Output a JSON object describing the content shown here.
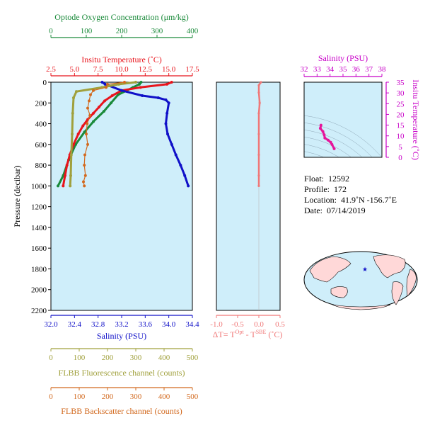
{
  "colors": {
    "oxygen": "#1a8a3a",
    "temperature": "#e8141c",
    "salinity": "#1010c8",
    "fluorescence": "#a0a03c",
    "backscatter": "#d2691e",
    "delta": "#f07878",
    "ts_axis": "#c800c8",
    "ts_line": "#e6149a",
    "panel_bg": "#cfeefa",
    "map_ocean": "#cfeefa",
    "map_land": "#ffd8d8",
    "map_marker": "#1010c8"
  },
  "main_panel": {
    "ylabel": "Pressure (decibar)",
    "yticks": [
      "0",
      "200",
      "400",
      "600",
      "800",
      "1000",
      "1200",
      "1400",
      "1600",
      "1800",
      "2000",
      "2200"
    ],
    "ylim": [
      0,
      2200
    ],
    "axes": {
      "oxygen": {
        "label": "Optode Oxygen Concentration (μm/kg)",
        "ticks": [
          "0",
          "100",
          "200",
          "300",
          "400"
        ],
        "lim": [
          0,
          400
        ]
      },
      "temperature": {
        "label": "Insitu Temperature (˚C)",
        "ticks": [
          "2.5",
          "5.0",
          "7.5",
          "10.0",
          "12.5",
          "15.0",
          "17.5"
        ],
        "lim": [
          2.5,
          17.5
        ]
      },
      "salinity": {
        "label": "Salinity (PSU)",
        "ticks": [
          "32.0",
          "32.4",
          "32.8",
          "33.2",
          "33.6",
          "34.0",
          "34.4"
        ],
        "lim": [
          32.0,
          34.4
        ]
      },
      "fluorescence": {
        "label": "FLBB Fluorescence channel (counts)",
        "ticks": [
          "0",
          "100",
          "200",
          "300",
          "400",
          "500"
        ],
        "lim": [
          0,
          500
        ]
      },
      "backscatter": {
        "label": "FLBB Backscatter channel (counts)",
        "ticks": [
          "0",
          "100",
          "200",
          "300",
          "400",
          "500"
        ],
        "lim": [
          0,
          500
        ]
      }
    }
  },
  "delta_panel": {
    "xlabel_main": "ΔT= T",
    "xlabel_sup1": "Opt",
    "xlabel_mid": " - T",
    "xlabel_sup2": "SBE",
    "xlabel_end": " (˚C)",
    "ticks": [
      "-1.0",
      "-0.5",
      "0.0",
      "0.5"
    ],
    "lim": [
      -1.0,
      0.5
    ]
  },
  "ts_panel": {
    "xlabel": "Salinity (PSU)",
    "ylabel": "Insitu Temperature (˚C)",
    "xticks": [
      "32",
      "33",
      "34",
      "35",
      "36",
      "37",
      "38"
    ],
    "yticks": [
      "0",
      "5",
      "10",
      "15",
      "20",
      "25",
      "30",
      "35"
    ],
    "xlim": [
      32,
      38
    ],
    "ylim": [
      0,
      35
    ]
  },
  "float_info": {
    "float_label": "Float:",
    "float_value": "12592",
    "profile_label": "Profile:",
    "profile_value": "172",
    "location_label": "Location:",
    "location_value": "41.9˚N  -156.7˚E",
    "date_label": "Date:",
    "date_value": "07/14/2019"
  },
  "chart_data": [
    {
      "type": "line",
      "title": "Optode Oxygen Concentration (μm/kg)",
      "x": [
        255,
        250,
        232,
        215,
        190,
        170,
        150,
        120,
        95,
        70,
        50,
        35,
        20
      ],
      "y": [
        0,
        20,
        50,
        80,
        120,
        200,
        280,
        380,
        480,
        600,
        750,
        900,
        1000
      ],
      "xlim": [
        0,
        400
      ]
    },
    {
      "type": "line",
      "title": "Insitu Temperature (˚C)",
      "x": [
        15.3,
        14.8,
        12.0,
        10.0,
        9.0,
        8.2,
        7.6,
        7.0,
        6.4,
        5.9,
        5.4,
        4.9,
        4.5,
        4.2,
        4.0,
        3.8
      ],
      "y": [
        0,
        20,
        50,
        80,
        130,
        180,
        240,
        300,
        360,
        420,
        500,
        600,
        700,
        800,
        900,
        1000
      ],
      "xlim": [
        2.5,
        17.5
      ]
    },
    {
      "type": "line",
      "title": "Salinity (PSU)",
      "x": [
        32.87,
        32.92,
        33.2,
        33.55,
        33.82,
        33.95,
        34.0,
        33.97,
        33.95,
        33.98,
        34.05,
        34.12,
        34.2,
        34.27,
        34.33
      ],
      "y": [
        0,
        20,
        80,
        130,
        150,
        170,
        200,
        300,
        400,
        500,
        600,
        700,
        800,
        900,
        1000
      ],
      "xlim": [
        32.0,
        34.4
      ]
    },
    {
      "type": "line",
      "title": "FLBB Fluorescence channel (counts)",
      "x": [
        300,
        240,
        180,
        90,
        80,
        77,
        75,
        72,
        70,
        68
      ],
      "y": [
        0,
        20,
        50,
        90,
        150,
        300,
        500,
        700,
        900,
        1000
      ],
      "xlim": [
        0,
        500
      ]
    },
    {
      "type": "scatter",
      "title": "FLBB Backscatter channel (counts)",
      "x": [
        260,
        200,
        195,
        150,
        140,
        135,
        130,
        138,
        128,
        125,
        130,
        120,
        118,
        122,
        115,
        118
      ],
      "y": [
        0,
        20,
        50,
        80,
        120,
        180,
        250,
        320,
        400,
        500,
        600,
        700,
        800,
        900,
        960,
        1000
      ],
      "xlim": [
        0,
        500
      ]
    },
    {
      "type": "line",
      "title": "ΔT",
      "x": [
        0.05,
        0.0,
        0.0,
        0.02,
        0.0,
        0.0,
        0.0,
        0.0,
        0.0
      ],
      "y": [
        0,
        30,
        100,
        200,
        300,
        500,
        700,
        900,
        1000
      ],
      "xlim": [
        -1.0,
        0.5
      ]
    },
    {
      "type": "line",
      "title": "Salinity (PSU)",
      "x": [
        33.3,
        33.25,
        33.45,
        33.55,
        33.6,
        33.85,
        34.05,
        34.15,
        34.32
      ],
      "y": [
        15.0,
        13.5,
        12.0,
        10.5,
        9.0,
        8.0,
        7.0,
        6.0,
        4.0
      ],
      "xlim": [
        32,
        38
      ],
      "ylim": [
        0,
        35
      ]
    }
  ]
}
